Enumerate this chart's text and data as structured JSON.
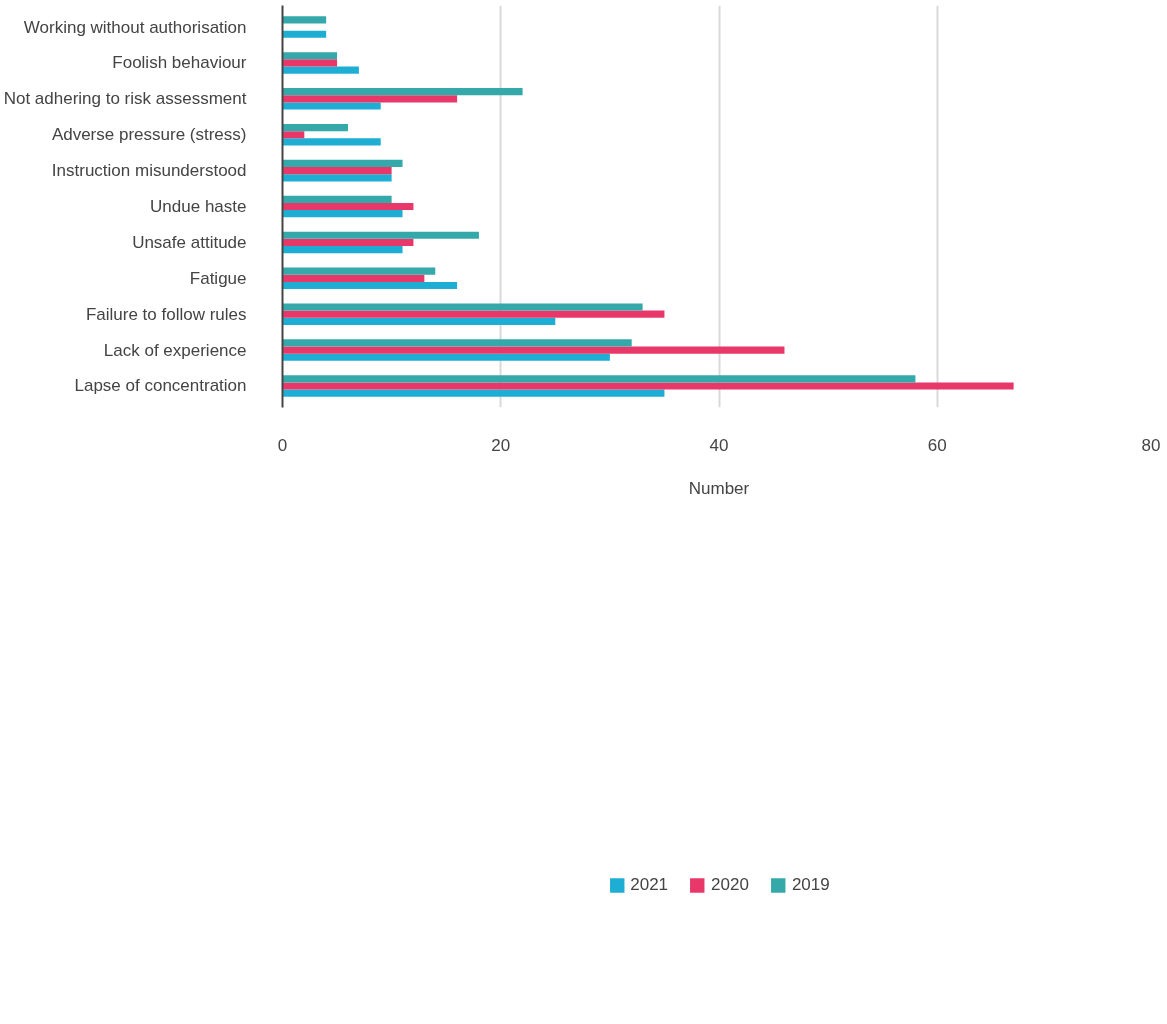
{
  "chart_data": {
    "type": "bar",
    "orientation": "horizontal",
    "xlabel": "Number",
    "categories": [
      "Working without authorisation",
      "Foolish behaviour",
      "Not adhering to risk assessment",
      "Adverse pressure (stress)",
      "Instruction misunderstood",
      "Undue haste",
      "Unsafe attitude",
      "Fatigue",
      "Failure to follow rules",
      "Lack of experience",
      "Lapse of concentration"
    ],
    "series": [
      {
        "name": "2021",
        "color": "#1eaed4",
        "values": [
          4,
          7,
          9,
          9,
          10,
          11,
          11,
          16,
          25,
          30,
          35
        ]
      },
      {
        "name": "2020",
        "color": "#e8386a",
        "values": [
          0,
          5,
          16,
          2,
          10,
          12,
          12,
          13,
          35,
          46,
          67
        ]
      },
      {
        "name": "2019",
        "color": "#35a9a9",
        "values": [
          4,
          5,
          22,
          6,
          11,
          10,
          18,
          14,
          33,
          32,
          58
        ]
      }
    ],
    "xlim": [
      0,
      80
    ],
    "xticks": [
      0,
      20,
      40,
      60,
      80
    ],
    "grid": "x",
    "legend": "bottom"
  }
}
